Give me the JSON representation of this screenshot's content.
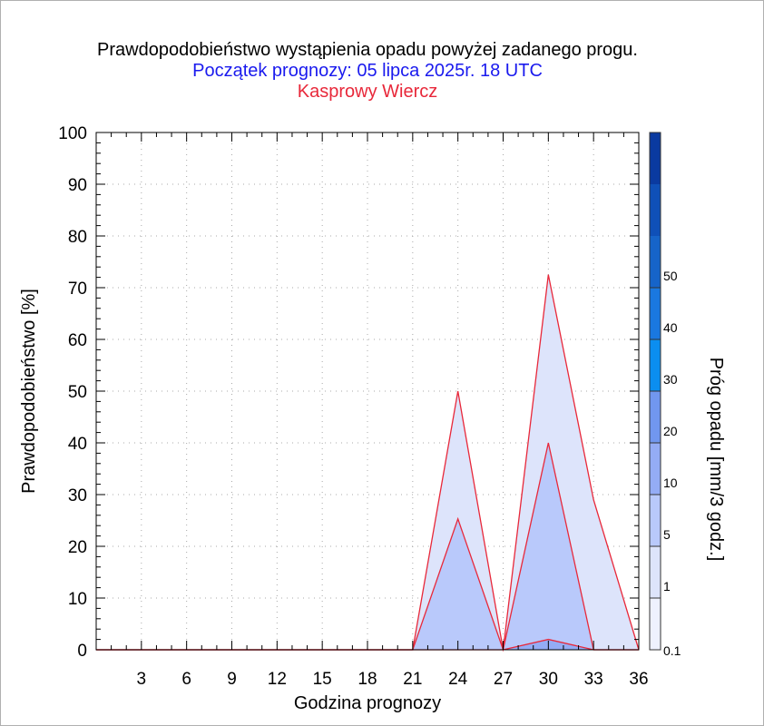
{
  "chart_data": {
    "type": "area",
    "title": "Prawdopodobieństwo wystąpienia opadu powyżej zadanego progu.",
    "subtitle": "Początek prognozy: 05 lipca 2025r. 18 UTC",
    "station": "Kasprowy Wiercz",
    "xlabel": "Godzina prognozy",
    "ylabel": "Prawdopodobieństwo [%]",
    "colorbar_label": "Próg opadu [mm/3 godz.]",
    "xlim": [
      0,
      36
    ],
    "ylim": [
      0,
      100
    ],
    "x_ticks": [
      3,
      6,
      9,
      12,
      15,
      18,
      21,
      24,
      27,
      30,
      33,
      36
    ],
    "y_ticks": [
      0,
      10,
      20,
      30,
      40,
      50,
      60,
      70,
      80,
      90,
      100
    ],
    "grid": true,
    "x": [
      0,
      3,
      6,
      9,
      12,
      15,
      18,
      21,
      24,
      27,
      30,
      33,
      36
    ],
    "series": [
      {
        "threshold": "0.1",
        "color": "#dde4fb",
        "values": [
          0,
          0,
          0,
          0,
          0,
          0,
          0,
          0,
          50,
          0,
          72.5,
          29,
          0
        ]
      },
      {
        "threshold": "1",
        "color": "#b9c9fb",
        "values": [
          0,
          0,
          0,
          0,
          0,
          0,
          0,
          0,
          25.3,
          0,
          40,
          0,
          0
        ]
      },
      {
        "threshold": "5",
        "color": "#94acf5",
        "values": [
          0,
          0,
          0,
          0,
          0,
          0,
          0,
          0,
          0,
          0,
          2,
          0,
          0
        ]
      }
    ],
    "colorbar": {
      "labels": [
        "0.1",
        "1",
        "5",
        "10",
        "20",
        "30",
        "40",
        "50"
      ],
      "colors": [
        "#eef1fe",
        "#dde4fb",
        "#b9c9fb",
        "#94acf5",
        "#7197ef",
        "#0b8ef0",
        "#1a78e0",
        "#1664c9",
        "#0f50b8",
        "#0a3aa0"
      ]
    },
    "line_color": "#e8283a"
  }
}
